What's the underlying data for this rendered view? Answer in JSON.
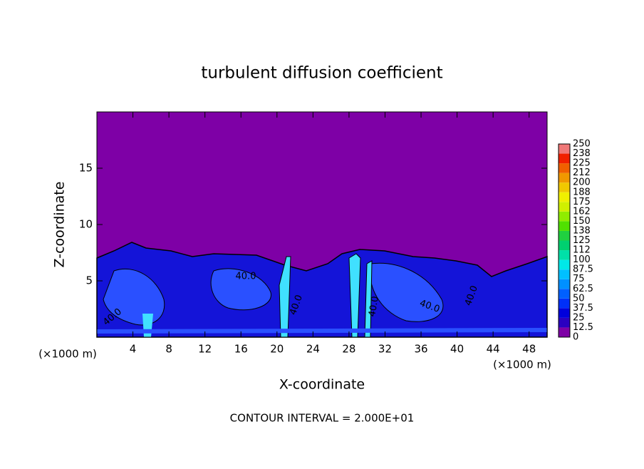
{
  "chart_data": {
    "type": "contour",
    "title": "turbulent diffusion coefficient",
    "x_label": "X-coordinate",
    "y_label": "Z-coordinate",
    "x_unit_label": "(×1000 m)",
    "y_unit_label": "(×1000 m)",
    "footnote": "CONTOUR INTERVAL = 2.000E+01",
    "xlim": [
      0,
      50
    ],
    "xticks": [
      4,
      8,
      12,
      16,
      20,
      24,
      28,
      32,
      36,
      40,
      44,
      48
    ],
    "ylim": [
      0,
      20
    ],
    "yticks": [
      5,
      10,
      15
    ],
    "contour_label": {
      "value": 40,
      "label": "40.0"
    },
    "colorbar": {
      "ticks": [
        0,
        12.5,
        25,
        37.5,
        50,
        62.5,
        75,
        87.5,
        100,
        {
          "value": 112.5,
          "label": "112"
        },
        125,
        {
          "value": 137.5,
          "label": "138"
        },
        150,
        {
          "value": 162.5,
          "label": "162"
        },
        175,
        {
          "value": 187.5,
          "label": "188"
        },
        200,
        {
          "value": 212.5,
          "label": "212"
        },
        225,
        {
          "value": 237.5,
          "label": "238"
        },
        250
      ],
      "colors": [
        "#7e00a6",
        "#2a00c0",
        "#0000dc",
        "#0030f8",
        "#0060ff",
        "#0090ff",
        "#00c0ff",
        "#00e8e8",
        "#00e0a8",
        "#00d070",
        "#20d040",
        "#50e000",
        "#90ec00",
        "#d0f000",
        "#f0f000",
        "#f0c800",
        "#f09800",
        "#f06000",
        "#f02000",
        "#f07878"
      ]
    }
  }
}
